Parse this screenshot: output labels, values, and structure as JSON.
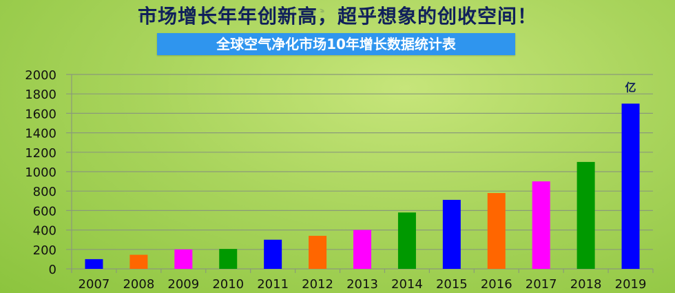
{
  "header": {
    "headline": "市场增长年年创新高，超乎想象的创收空间！",
    "subtitle": "全球空气净化市场10年增长数据统计表"
  },
  "chart_data": {
    "type": "bar",
    "title": "全球空气净化市场10年增长数据统计表",
    "unit_label": "亿",
    "categories": [
      "2007",
      "2008",
      "2009",
      "2010",
      "2011",
      "2012",
      "2013",
      "2014",
      "2015",
      "2016",
      "2017",
      "2018",
      "2019"
    ],
    "values": [
      100,
      145,
      200,
      205,
      300,
      340,
      400,
      580,
      710,
      780,
      900,
      1100,
      1700
    ],
    "colors": [
      "#0000ff",
      "#ff6600",
      "#ff00ff",
      "#009900",
      "#0000ff",
      "#ff6600",
      "#ff00ff",
      "#009900",
      "#0000ff",
      "#ff6600",
      "#ff00ff",
      "#009900",
      "#0000ff"
    ],
    "ylim": [
      0,
      2000
    ],
    "yticks": [
      0,
      200,
      400,
      600,
      800,
      1000,
      1200,
      1400,
      1600,
      1800,
      2000
    ],
    "grid": true,
    "legend": "none"
  }
}
